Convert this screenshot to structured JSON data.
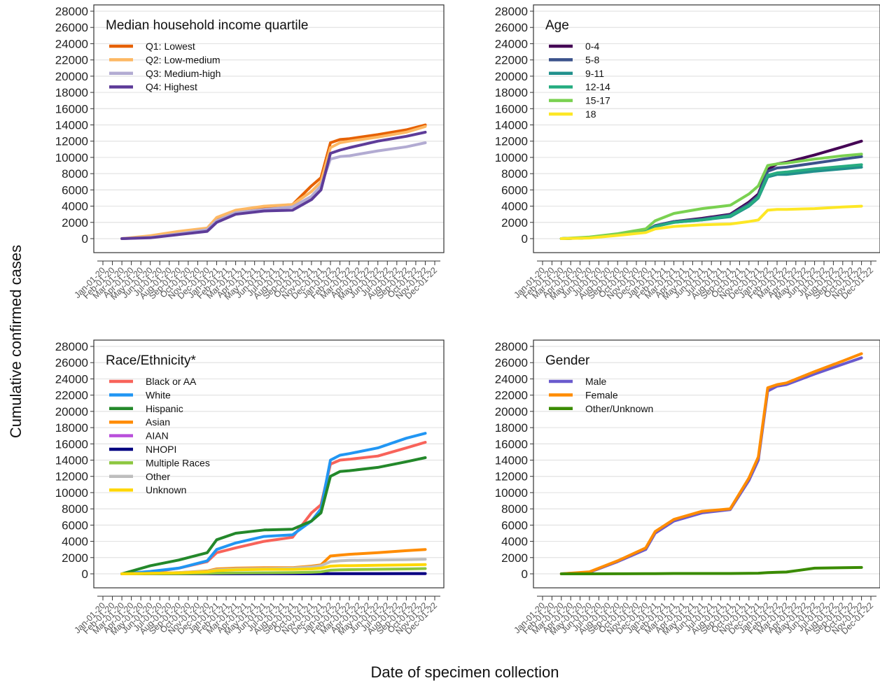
{
  "figure": {
    "ylabel": "Cumulative confirmed cases",
    "xlabel": "Date of specimen collection"
  },
  "chart_data": [
    {
      "type": "line",
      "title": "Median household income quartile",
      "ylim": [
        0,
        28000
      ],
      "yticks": [
        0,
        2000,
        4000,
        6000,
        8000,
        10000,
        12000,
        14000,
        16000,
        18000,
        20000,
        22000,
        24000,
        26000,
        28000
      ],
      "x_tick_labels": [
        "Jan-01-20",
        "Feb-01-20",
        "Mar-01-20",
        "Apr-01-20",
        "May-01-20",
        "Jun-01-20",
        "Jul-01-20",
        "Aug-01-20",
        "Sep-01-20",
        "Oct-01-20",
        "Nov-01-20",
        "Dec-01-20",
        "Jan-01-21",
        "Feb-01-21",
        "Mar-01-21",
        "Apr-01-21",
        "May-01-21",
        "Jun-01-21",
        "Jul-01-21",
        "Aug-01-21",
        "Sep-01-21",
        "Oct-01-21",
        "Nov-01-21",
        "Dec-01-21",
        "Jan-01-22",
        "Feb-01-22",
        "Mar-01-22",
        "Apr-01-22",
        "May-01-22",
        "Jun-01-22",
        "Jul-01-22",
        "Aug-01-22",
        "Sep-01-22",
        "Oct-01-22",
        "Nov-01-22",
        "Dec-01-22"
      ],
      "x": [
        "Mar-01-20",
        "Jun-01-20",
        "Sep-01-20",
        "Dec-01-20",
        "Jan-01-21",
        "Mar-01-21",
        "Jun-01-21",
        "Sep-01-21",
        "Nov-01-21",
        "Dec-01-21",
        "Jan-01-22",
        "Feb-01-22",
        "Mar-01-22",
        "Jun-01-22",
        "Sep-01-22",
        "Nov-01-22"
      ],
      "legend_position": "top-left",
      "series": [
        {
          "name": "Q1: Lowest",
          "color": "#E66101",
          "values": [
            0,
            200,
            700,
            1200,
            2400,
            3300,
            3900,
            4200,
            6500,
            7500,
            11800,
            12200,
            12300,
            12800,
            13400,
            14000
          ]
        },
        {
          "name": "Q2: Low-medium",
          "color": "#FDB863",
          "values": [
            0,
            350,
            900,
            1300,
            2600,
            3500,
            4000,
            4200,
            5800,
            7000,
            11200,
            11800,
            12000,
            12500,
            13100,
            13800
          ]
        },
        {
          "name": "Q3: Medium-high",
          "color": "#B2ABD2",
          "values": [
            0,
            150,
            600,
            1100,
            2200,
            3200,
            3600,
            3900,
            5200,
            6500,
            9800,
            10100,
            10200,
            10800,
            11300,
            11800
          ]
        },
        {
          "name": "Q4: Highest",
          "color": "#5E3C99",
          "values": [
            0,
            100,
            500,
            900,
            2000,
            3000,
            3400,
            3500,
            4800,
            6000,
            10500,
            10900,
            11200,
            12000,
            12600,
            13100
          ]
        }
      ]
    },
    {
      "type": "line",
      "title": "Age",
      "ylim": [
        0,
        28000
      ],
      "yticks": [
        0,
        2000,
        4000,
        6000,
        8000,
        10000,
        12000,
        14000,
        16000,
        18000,
        20000,
        22000,
        24000,
        26000,
        28000
      ],
      "x_tick_labels": [
        "Jan-01-20",
        "Feb-01-20",
        "Mar-01-20",
        "Apr-01-20",
        "May-01-20",
        "Jun-01-20",
        "Jul-01-20",
        "Aug-01-20",
        "Sep-01-20",
        "Oct-01-20",
        "Nov-01-20",
        "Dec-01-20",
        "Jan-01-21",
        "Feb-01-21",
        "Mar-01-21",
        "Apr-01-21",
        "May-01-21",
        "Jun-01-21",
        "Jul-01-21",
        "Aug-01-21",
        "Sep-01-21",
        "Oct-01-21",
        "Nov-01-21",
        "Dec-01-21",
        "Jan-01-22",
        "Feb-01-22",
        "Mar-01-22",
        "Apr-01-22",
        "May-01-22",
        "Jun-01-22",
        "Jul-01-22",
        "Aug-01-22",
        "Sep-01-22",
        "Oct-01-22",
        "Nov-01-22",
        "Dec-01-22"
      ],
      "x": [
        "Mar-01-20",
        "Jun-01-20",
        "Sep-01-20",
        "Dec-01-20",
        "Jan-01-21",
        "Mar-01-21",
        "Jun-01-21",
        "Sep-01-21",
        "Nov-01-21",
        "Dec-01-21",
        "Jan-01-22",
        "Feb-01-22",
        "Mar-01-22",
        "Jun-01-22",
        "Sep-01-22",
        "Nov-01-22"
      ],
      "legend_position": "top-left",
      "series": [
        {
          "name": "0-4",
          "color": "#440154",
          "values": [
            0,
            100,
            500,
            900,
            1600,
            2100,
            2500,
            3000,
            4500,
            5500,
            8500,
            9200,
            9400,
            10300,
            11300,
            12000
          ]
        },
        {
          "name": "5-8",
          "color": "#3B528B",
          "values": [
            0,
            100,
            500,
            900,
            1600,
            2100,
            2400,
            2900,
            4300,
            5300,
            8300,
            8700,
            8800,
            9300,
            9800,
            10100
          ]
        },
        {
          "name": "9-11",
          "color": "#21908C",
          "values": [
            0,
            100,
            450,
            850,
            1500,
            2000,
            2300,
            2700,
            4000,
            5000,
            7600,
            7900,
            7900,
            8300,
            8600,
            8800
          ]
        },
        {
          "name": "12-14",
          "color": "#27AD81",
          "values": [
            0,
            100,
            450,
            850,
            1500,
            2000,
            2300,
            2800,
            4100,
            5100,
            7800,
            8100,
            8200,
            8600,
            8900,
            9100
          ]
        },
        {
          "name": "15-17",
          "color": "#7AD151",
          "values": [
            0,
            200,
            600,
            1200,
            2200,
            3100,
            3700,
            4100,
            5500,
            6500,
            9000,
            9200,
            9300,
            9800,
            10200,
            10400
          ]
        },
        {
          "name": "18",
          "color": "#FDE725",
          "values": [
            0,
            80,
            400,
            750,
            1200,
            1500,
            1700,
            1800,
            2100,
            2300,
            3500,
            3600,
            3600,
            3700,
            3900,
            4000
          ]
        }
      ]
    },
    {
      "type": "line",
      "title": "Race/Ethnicity*",
      "ylim": [
        0,
        28000
      ],
      "yticks": [
        0,
        2000,
        4000,
        6000,
        8000,
        10000,
        12000,
        14000,
        16000,
        18000,
        20000,
        22000,
        24000,
        26000,
        28000
      ],
      "x_tick_labels": [
        "Jan-01-20",
        "Feb-01-20",
        "Mar-01-20",
        "Apr-01-20",
        "May-01-20",
        "Jun-01-20",
        "Jul-01-20",
        "Aug-01-20",
        "Sep-01-20",
        "Oct-01-20",
        "Nov-01-20",
        "Dec-01-20",
        "Jan-01-21",
        "Feb-01-21",
        "Mar-01-21",
        "Apr-01-21",
        "May-01-21",
        "Jun-01-21",
        "Jul-01-21",
        "Aug-01-21",
        "Sep-01-21",
        "Oct-01-21",
        "Nov-01-21",
        "Dec-01-21",
        "Jan-01-22",
        "Feb-01-22",
        "Mar-01-22",
        "Apr-01-22",
        "May-01-22",
        "Jun-01-22",
        "Jul-01-22",
        "Aug-01-22",
        "Sep-01-22",
        "Oct-01-22",
        "Nov-01-22",
        "Dec-01-22"
      ],
      "x": [
        "Mar-01-20",
        "Jun-01-20",
        "Sep-01-20",
        "Dec-01-20",
        "Jan-01-21",
        "Mar-01-21",
        "Jun-01-21",
        "Sep-01-21",
        "Nov-01-21",
        "Dec-01-21",
        "Jan-01-22",
        "Feb-01-22",
        "Mar-01-22",
        "Jun-01-22",
        "Sep-01-22",
        "Nov-01-22"
      ],
      "legend_position": "top-left",
      "series": [
        {
          "name": "Black or AA",
          "color": "#F8635A",
          "values": [
            0,
            200,
            700,
            1500,
            2600,
            3200,
            4000,
            4500,
            7500,
            8500,
            13500,
            14000,
            14100,
            14500,
            15500,
            16200
          ]
        },
        {
          "name": "White",
          "color": "#2196F3",
          "values": [
            0,
            300,
            700,
            1600,
            3000,
            3800,
            4600,
            4800,
            6500,
            8000,
            14000,
            14600,
            14800,
            15500,
            16700,
            17300
          ]
        },
        {
          "name": "Hispanic",
          "color": "#23882A",
          "values": [
            0,
            1000,
            1700,
            2600,
            4200,
            5000,
            5400,
            5500,
            6500,
            7500,
            12000,
            12600,
            12700,
            13100,
            13800,
            14300
          ]
        },
        {
          "name": "Asian",
          "color": "#FF8C00",
          "values": [
            0,
            50,
            150,
            350,
            600,
            700,
            750,
            750,
            950,
            1100,
            2200,
            2300,
            2400,
            2600,
            2850,
            3000
          ]
        },
        {
          "name": "AIAN",
          "color": "#B94FDB",
          "values": [
            0,
            0,
            0,
            5,
            5,
            10,
            10,
            10,
            10,
            15,
            20,
            20,
            20,
            25,
            25,
            25
          ]
        },
        {
          "name": "NHOPI",
          "color": "#000080",
          "values": [
            0,
            0,
            0,
            5,
            10,
            10,
            15,
            15,
            15,
            20,
            25,
            30,
            30,
            30,
            35,
            35
          ]
        },
        {
          "name": "Multiple Races",
          "color": "#8CC63F",
          "values": [
            0,
            10,
            30,
            60,
            90,
            110,
            130,
            150,
            200,
            250,
            450,
            500,
            520,
            560,
            600,
            650
          ]
        },
        {
          "name": "Other",
          "color": "#BDBDBD",
          "values": [
            0,
            50,
            150,
            300,
            500,
            600,
            650,
            700,
            850,
            1000,
            1500,
            1600,
            1650,
            1700,
            1750,
            1800
          ]
        },
        {
          "name": "Unknown",
          "color": "#FFD700",
          "values": [
            0,
            50,
            120,
            250,
            400,
            500,
            550,
            550,
            600,
            700,
            950,
            1000,
            1000,
            1050,
            1100,
            1150
          ]
        }
      ]
    },
    {
      "type": "line",
      "title": "Gender",
      "ylim": [
        0,
        28000
      ],
      "yticks": [
        0,
        2000,
        4000,
        6000,
        8000,
        10000,
        12000,
        14000,
        16000,
        18000,
        20000,
        22000,
        24000,
        26000,
        28000
      ],
      "x_tick_labels": [
        "Jan-01-20",
        "Feb-01-20",
        "Mar-01-20",
        "Apr-01-20",
        "May-01-20",
        "Jun-01-20",
        "Jul-01-20",
        "Aug-01-20",
        "Sep-01-20",
        "Oct-01-20",
        "Nov-01-20",
        "Dec-01-20",
        "Jan-01-21",
        "Feb-01-21",
        "Mar-01-21",
        "Apr-01-21",
        "May-01-21",
        "Jun-01-21",
        "Jul-01-21",
        "Aug-01-21",
        "Sep-01-21",
        "Oct-01-21",
        "Nov-01-21",
        "Dec-01-21",
        "Jan-01-22",
        "Feb-01-22",
        "Mar-01-22",
        "Apr-01-22",
        "May-01-22",
        "Jun-01-22",
        "Jul-01-22",
        "Aug-01-22",
        "Sep-01-22",
        "Oct-01-22",
        "Nov-01-22",
        "Dec-01-22"
      ],
      "x": [
        "Mar-01-20",
        "Jun-01-20",
        "Sep-01-20",
        "Dec-01-20",
        "Jan-01-21",
        "Mar-01-21",
        "Jun-01-21",
        "Sep-01-21",
        "Nov-01-21",
        "Dec-01-21",
        "Jan-01-22",
        "Feb-01-22",
        "Mar-01-22",
        "Jun-01-22",
        "Sep-01-22",
        "Nov-01-22"
      ],
      "legend_position": "top-left",
      "series": [
        {
          "name": "Male",
          "color": "#6A5ACD",
          "values": [
            0,
            200,
            1500,
            3000,
            5000,
            6500,
            7500,
            7900,
            11500,
            14000,
            22500,
            23100,
            23300,
            24600,
            25800,
            26600
          ]
        },
        {
          "name": "Female",
          "color": "#FF8C00",
          "values": [
            0,
            250,
            1600,
            3200,
            5200,
            6700,
            7700,
            8000,
            11800,
            14400,
            22900,
            23300,
            23500,
            24900,
            26200,
            27100
          ]
        },
        {
          "name": "Other/Unknown",
          "color": "#3A8B00",
          "values": [
            0,
            0,
            10,
            20,
            30,
            40,
            40,
            40,
            60,
            80,
            150,
            200,
            220,
            700,
            750,
            780
          ]
        }
      ]
    }
  ]
}
